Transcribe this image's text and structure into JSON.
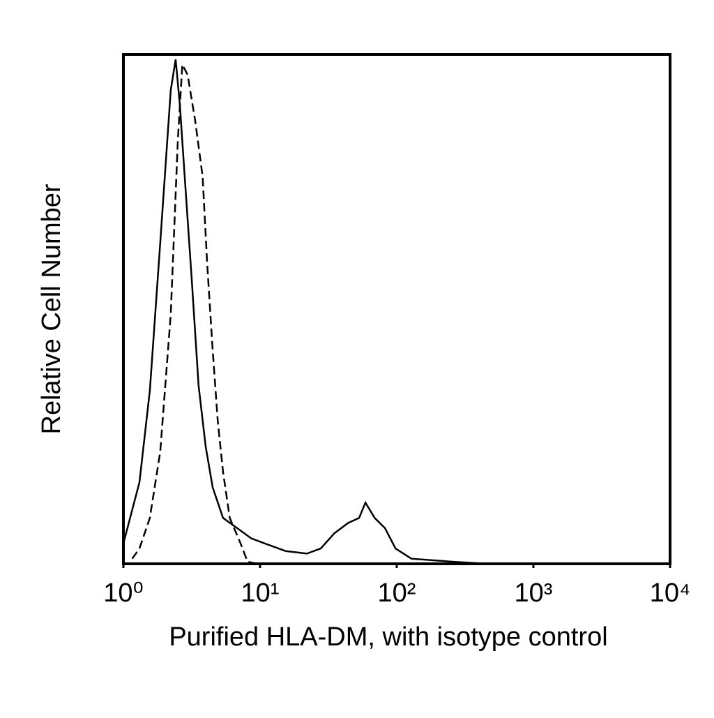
{
  "chart_data": {
    "type": "line",
    "x_label": "Purified HLA-DM, with isotype control",
    "y_label": "Relative Cell Number",
    "log_x": true,
    "xlim": [
      1,
      10000
    ],
    "xticks": [
      {
        "value": 1,
        "label": "10⁰"
      },
      {
        "value": 10,
        "label": "10¹"
      },
      {
        "value": 100,
        "label": "10²"
      },
      {
        "value": 1000,
        "label": "10³"
      },
      {
        "value": 10000,
        "label": "10⁴"
      }
    ],
    "ylim": [
      0,
      100
    ],
    "series": [
      {
        "color": "#000000",
        "dash": false,
        "x": [
          1,
          1.31,
          1.56,
          1.86,
          2.22,
          2.41,
          2.59,
          2.81,
          3.16,
          3.55,
          4.0,
          4.5,
          5.36,
          6.8,
          8.6,
          10.8,
          15.4,
          22,
          27.8,
          35,
          44,
          53,
          59,
          69,
          82,
          98,
          128,
          182,
          260,
          465
        ],
        "values": [
          4,
          16,
          34,
          63,
          93,
          99,
          90,
          76,
          56,
          35,
          23,
          15,
          9,
          7,
          5,
          4,
          2.5,
          2,
          3,
          6,
          8,
          9,
          12,
          9,
          7,
          3,
          1,
          0.7,
          0.4,
          0
        ]
      },
      {
        "color": "#000000",
        "dash": true,
        "x": [
          1.16,
          1.31,
          1.56,
          1.86,
          2.22,
          2.5,
          2.7,
          2.95,
          3.35,
          3.8,
          4.1,
          4.5,
          4.9,
          5.36,
          6.0,
          7.2,
          8.1,
          9.6
        ],
        "values": [
          1,
          3,
          9,
          22,
          49,
          83,
          98,
          96,
          87,
          76,
          59,
          42,
          28,
          18,
          9,
          4,
          0.4,
          0
        ]
      }
    ]
  }
}
